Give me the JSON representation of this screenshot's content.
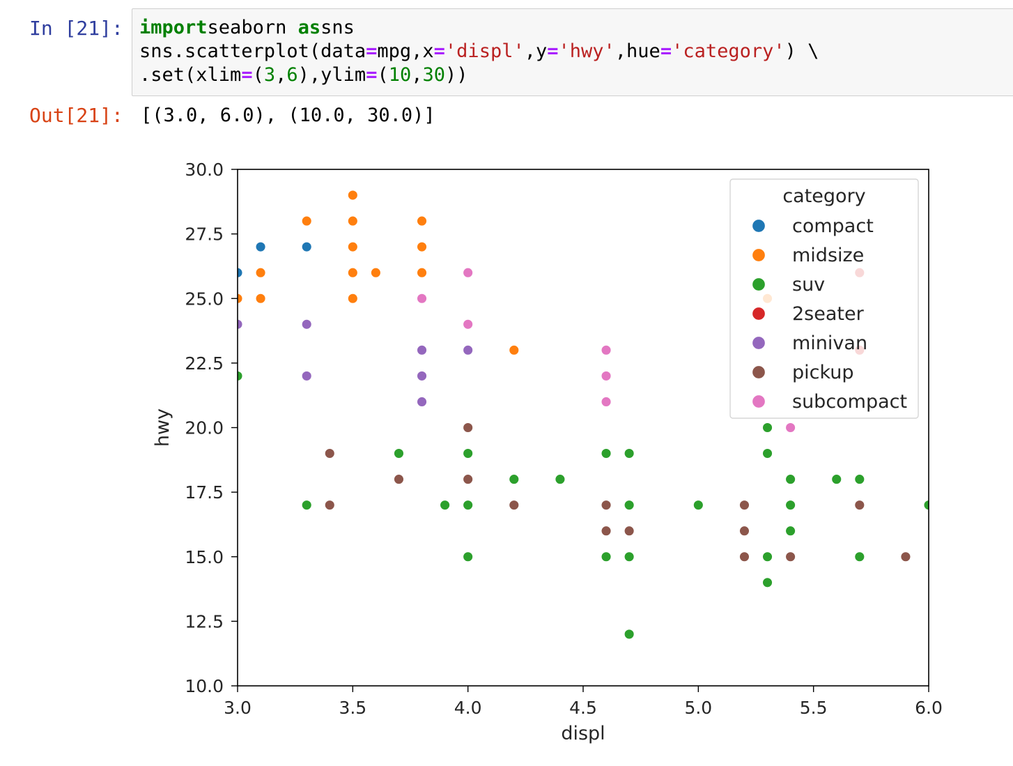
{
  "cell": {
    "in_prompt": "In [21]:",
    "out_prompt": "Out[21]:",
    "code_lines": [
      [
        [
          "kw",
          "import"
        ],
        [
          "",
          "seaborn "
        ],
        [
          "kw",
          "as"
        ],
        [
          "",
          "sns"
        ]
      ],
      [
        [
          "",
          "sns.scatterplot(data"
        ],
        [
          "op",
          "="
        ],
        [
          "",
          "mpg,x"
        ],
        [
          "op",
          "="
        ],
        [
          "str",
          "'displ'"
        ],
        [
          "",
          ",y"
        ],
        [
          "op",
          "="
        ],
        [
          "str",
          "'hwy'"
        ],
        [
          "",
          ",hue"
        ],
        [
          "op",
          "="
        ],
        [
          "str",
          "'category'"
        ],
        [
          "",
          ") \\"
        ]
      ],
      [
        [
          "",
          ".set(xlim"
        ],
        [
          "op",
          "="
        ],
        [
          "",
          "("
        ],
        [
          "num",
          "3"
        ],
        [
          "",
          ","
        ],
        [
          "num",
          "6"
        ],
        [
          "",
          "),ylim"
        ],
        [
          "op",
          "="
        ],
        [
          "",
          "("
        ],
        [
          "num",
          "10"
        ],
        [
          "",
          ","
        ],
        [
          "num",
          "30"
        ],
        [
          "",
          "))"
        ]
      ]
    ],
    "output_text": "[(3.0, 6.0), (10.0, 30.0)]"
  },
  "chart_data": {
    "type": "scatter",
    "xlabel": "displ",
    "ylabel": "hwy",
    "xlim": [
      3.0,
      6.0
    ],
    "ylim": [
      10.0,
      30.0
    ],
    "xticks": [
      "3.0",
      "3.5",
      "4.0",
      "4.5",
      "5.0",
      "5.5",
      "6.0"
    ],
    "yticks": [
      "10.0",
      "12.5",
      "15.0",
      "17.5",
      "20.0",
      "22.5",
      "25.0",
      "27.5",
      "30.0"
    ],
    "grid": false,
    "legend": {
      "title": "category",
      "placement": "top-right"
    },
    "series": [
      {
        "name": "compact",
        "color": "#1f77b4",
        "points": [
          [
            3.0,
            26
          ],
          [
            3.1,
            27
          ],
          [
            3.3,
            27
          ]
        ]
      },
      {
        "name": "midsize",
        "color": "#ff7f0e",
        "points": [
          [
            3.0,
            25
          ],
          [
            3.1,
            26
          ],
          [
            3.1,
            25
          ],
          [
            3.3,
            28
          ],
          [
            3.5,
            29
          ],
          [
            3.5,
            28
          ],
          [
            3.5,
            27
          ],
          [
            3.5,
            26
          ],
          [
            3.5,
            25
          ],
          [
            3.6,
            26
          ],
          [
            3.8,
            28
          ],
          [
            3.8,
            27
          ],
          [
            3.8,
            26
          ],
          [
            4.2,
            23
          ],
          [
            5.3,
            25
          ]
        ]
      },
      {
        "name": "suv",
        "color": "#2ca02c",
        "points": [
          [
            3.0,
            22
          ],
          [
            3.3,
            17
          ],
          [
            3.7,
            19
          ],
          [
            3.9,
            17
          ],
          [
            4.0,
            19
          ],
          [
            4.0,
            17
          ],
          [
            4.0,
            15
          ],
          [
            4.2,
            18
          ],
          [
            4.4,
            18
          ],
          [
            4.6,
            19
          ],
          [
            4.6,
            15
          ],
          [
            4.7,
            19
          ],
          [
            4.7,
            17
          ],
          [
            4.7,
            15
          ],
          [
            4.7,
            12
          ],
          [
            5.0,
            17
          ],
          [
            5.3,
            20
          ],
          [
            5.3,
            19
          ],
          [
            5.3,
            15
          ],
          [
            5.3,
            14
          ],
          [
            5.4,
            18
          ],
          [
            5.4,
            17
          ],
          [
            5.4,
            16
          ],
          [
            5.6,
            18
          ],
          [
            5.7,
            18
          ],
          [
            5.7,
            15
          ],
          [
            6.0,
            17
          ]
        ]
      },
      {
        "name": "2seater",
        "color": "#d62728",
        "points": [
          [
            5.7,
            26
          ],
          [
            5.7,
            23
          ]
        ]
      },
      {
        "name": "minivan",
        "color": "#9467bd",
        "points": [
          [
            3.0,
            24
          ],
          [
            3.3,
            24
          ],
          [
            3.3,
            22
          ],
          [
            3.8,
            23
          ],
          [
            3.8,
            22
          ],
          [
            3.8,
            21
          ],
          [
            4.0,
            23
          ]
        ]
      },
      {
        "name": "pickup",
        "color": "#8c564b",
        "points": [
          [
            3.4,
            19
          ],
          [
            3.4,
            17
          ],
          [
            3.7,
            18
          ],
          [
            4.0,
            20
          ],
          [
            4.0,
            18
          ],
          [
            4.2,
            17
          ],
          [
            4.6,
            17
          ],
          [
            4.6,
            16
          ],
          [
            4.7,
            16
          ],
          [
            5.2,
            17
          ],
          [
            5.2,
            16
          ],
          [
            5.2,
            15
          ],
          [
            5.4,
            15
          ],
          [
            5.7,
            17
          ],
          [
            5.9,
            15
          ]
        ]
      },
      {
        "name": "subcompact",
        "color": "#e377c2",
        "points": [
          [
            3.8,
            25
          ],
          [
            4.0,
            26
          ],
          [
            4.0,
            24
          ],
          [
            4.6,
            23
          ],
          [
            4.6,
            22
          ],
          [
            4.6,
            21
          ],
          [
            5.4,
            20
          ]
        ]
      }
    ]
  }
}
